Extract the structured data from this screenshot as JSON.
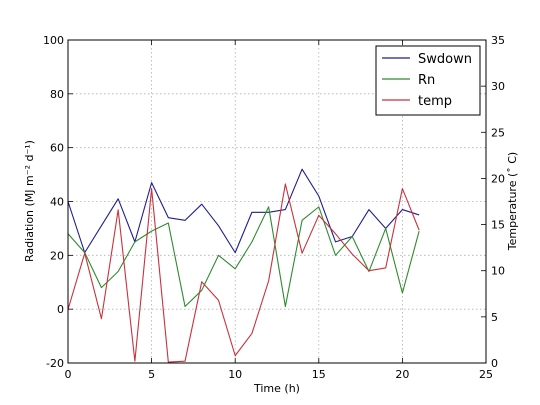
{
  "chart_data": {
    "type": "line",
    "xlabel": "Time (h)",
    "ylabel_left": "Radiation (MJ m⁻² d⁻¹)",
    "ylabel_right": "Temperature (˚ C)",
    "xlim": [
      0,
      25
    ],
    "ylim_left": [
      -20,
      100
    ],
    "ylim_right": [
      0,
      35
    ],
    "x_ticks": [
      0,
      5,
      10,
      15,
      20,
      25
    ],
    "y_left_ticks": [
      -20,
      0,
      20,
      40,
      60,
      80,
      100
    ],
    "y_right_ticks": [
      0,
      5,
      10,
      15,
      20,
      25,
      30,
      35
    ],
    "grid": true,
    "legend_position": "top-right",
    "x": [
      0,
      1,
      2,
      3,
      4,
      5,
      6,
      7,
      8,
      9,
      10,
      11,
      12,
      13,
      14,
      15,
      16,
      17,
      18,
      19,
      20,
      21
    ],
    "series": [
      {
        "name": "Swdown",
        "axis": "left",
        "color": "#1f1f8f",
        "values": [
          40,
          21,
          31,
          41,
          25,
          47,
          34,
          33,
          39,
          31,
          21,
          36,
          36,
          37,
          52,
          42,
          25,
          27,
          37,
          30,
          37,
          35
        ]
      },
      {
        "name": "Rn",
        "axis": "left",
        "color": "#2e8b2e",
        "values": [
          28,
          21,
          8,
          14,
          25,
          29,
          32,
          1,
          7,
          20,
          15,
          25,
          38,
          1,
          33,
          38,
          20,
          27,
          14,
          30,
          6,
          29
        ]
      },
      {
        "name": "temp",
        "axis": "right",
        "color": "#c8323c",
        "values": [
          5.8,
          11.9,
          4.8,
          16.6,
          0.2,
          18.9,
          0.1,
          0.2,
          8.8,
          6.8,
          0.8,
          3.2,
          8.9,
          19.4,
          11.9,
          16.0,
          14.0,
          11.8,
          10.0,
          10.3,
          18.9,
          14.4
        ]
      }
    ]
  }
}
